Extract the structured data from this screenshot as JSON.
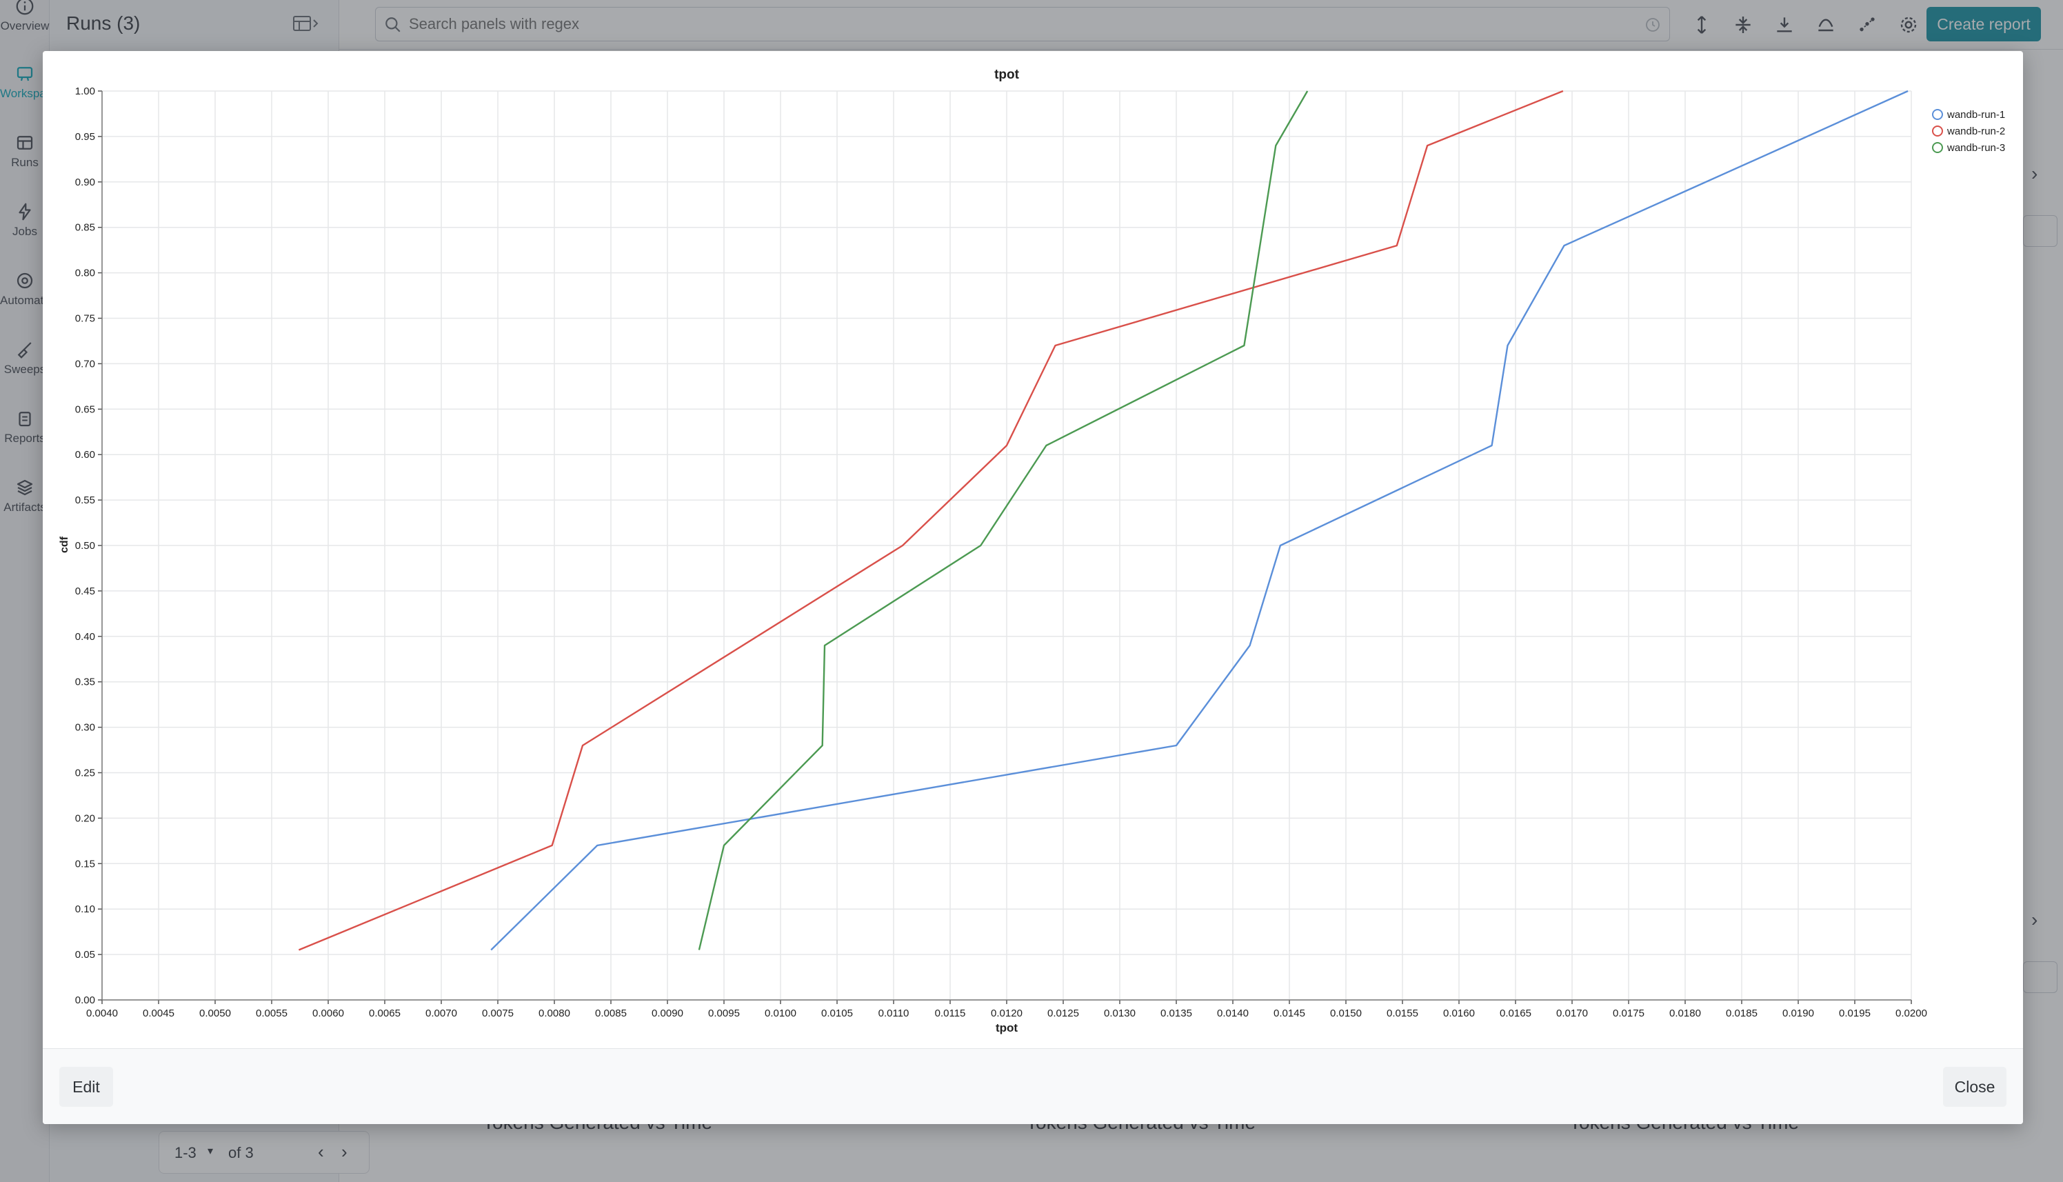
{
  "app": {
    "nav": [
      {
        "label": "Overview",
        "icon": "info-icon"
      },
      {
        "label": "Workspace",
        "icon": "workspace-icon",
        "active": true
      },
      {
        "label": "Runs",
        "icon": "table-icon"
      },
      {
        "label": "Jobs",
        "icon": "lightning-icon"
      },
      {
        "label": "Automations",
        "icon": "automation-icon"
      },
      {
        "label": "Sweeps",
        "icon": "broom-icon"
      },
      {
        "label": "Reports",
        "icon": "clipboard-icon"
      },
      {
        "label": "Artifacts",
        "icon": "layers-icon"
      }
    ],
    "runs_title": "Runs (3)",
    "pager": {
      "range": "1-3",
      "of": "of 3"
    },
    "search": {
      "placeholder": "Search panels with regex",
      "value": ""
    },
    "create_report": "Create report",
    "section_labels": [
      "Tokens Generated vs Time",
      "Tokens Generated vs Time",
      "Tokens Generated vs Time"
    ]
  },
  "modal": {
    "edit_label": "Edit",
    "close_label": "Close"
  },
  "chart_data": {
    "type": "line",
    "title": "tpot",
    "xlabel": "tpot",
    "ylabel": "cdf",
    "xlim": [
      0.004,
      0.02
    ],
    "ylim": [
      0.0,
      1.0
    ],
    "x_ticks": [
      "0.0040",
      "0.0045",
      "0.0050",
      "0.0055",
      "0.0060",
      "0.0065",
      "0.0070",
      "0.0075",
      "0.0080",
      "0.0085",
      "0.0090",
      "0.0095",
      "0.0100",
      "0.0105",
      "0.0110",
      "0.0115",
      "0.0120",
      "0.0125",
      "0.0130",
      "0.0135",
      "0.0140",
      "0.0145",
      "0.0150",
      "0.0155",
      "0.0160",
      "0.0165",
      "0.0170",
      "0.0175",
      "0.0180",
      "0.0185",
      "0.0190",
      "0.0195",
      "0.0200"
    ],
    "y_ticks": [
      "0.00",
      "0.05",
      "0.10",
      "0.15",
      "0.20",
      "0.25",
      "0.30",
      "0.35",
      "0.40",
      "0.45",
      "0.50",
      "0.55",
      "0.60",
      "0.65",
      "0.70",
      "0.75",
      "0.80",
      "0.85",
      "0.90",
      "0.95",
      "1.00"
    ],
    "grid": true,
    "legend_position": "top-right",
    "series": [
      {
        "name": "wandb-run-1",
        "color": "#5b8fd9",
        "points": [
          [
            0.00744,
            0.055
          ],
          [
            0.00838,
            0.17
          ],
          [
            0.0135,
            0.28
          ],
          [
            0.01415,
            0.39
          ],
          [
            0.01442,
            0.5
          ],
          [
            0.01629,
            0.61
          ],
          [
            0.01643,
            0.72
          ],
          [
            0.01693,
            0.83
          ],
          [
            0.0189,
            0.94
          ],
          [
            0.01997,
            1.0
          ]
        ]
      },
      {
        "name": "wandb-run-2",
        "color": "#d9504a",
        "points": [
          [
            0.00574,
            0.055
          ],
          [
            0.00798,
            0.17
          ],
          [
            0.00825,
            0.28
          ],
          [
            0.01108,
            0.5
          ],
          [
            0.012,
            0.61
          ],
          [
            0.01243,
            0.72
          ],
          [
            0.01545,
            0.83
          ],
          [
            0.01572,
            0.94
          ],
          [
            0.01692,
            1.0
          ]
        ]
      },
      {
        "name": "wandb-run-3",
        "color": "#4c9a52",
        "points": [
          [
            0.00928,
            0.055
          ],
          [
            0.0095,
            0.17
          ],
          [
            0.01037,
            0.28
          ],
          [
            0.01039,
            0.39
          ],
          [
            0.01177,
            0.5
          ],
          [
            0.01235,
            0.61
          ],
          [
            0.0141,
            0.72
          ],
          [
            0.01438,
            0.94
          ],
          [
            0.01466,
            1.0
          ]
        ]
      }
    ]
  }
}
